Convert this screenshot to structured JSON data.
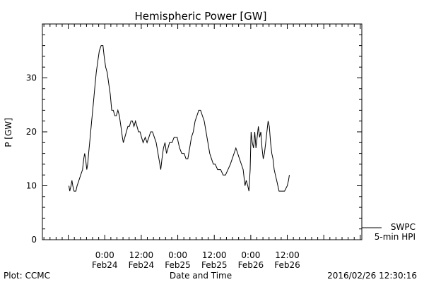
{
  "chart_data": {
    "type": "line",
    "title": "Hemispheric Power [GW]",
    "ylabel": "P [GW]",
    "xlabel": "Date and Time",
    "ylim": [
      0,
      40
    ],
    "xlim_hours": [
      -20.5,
      84.5
    ],
    "yticks": [
      {
        "value": 0,
        "label": "0"
      },
      {
        "value": 10,
        "label": "10"
      },
      {
        "value": 20,
        "label": "20"
      },
      {
        "value": 30,
        "label": "30"
      }
    ],
    "xticks": [
      {
        "hour": 0,
        "time": "0:00",
        "date": "Feb24"
      },
      {
        "hour": 12,
        "time": "12:00",
        "date": "Feb24"
      },
      {
        "hour": 24,
        "time": "0:00",
        "date": "Feb25"
      },
      {
        "hour": 36,
        "time": "12:00",
        "date": "Feb25"
      },
      {
        "hour": 48,
        "time": "0:00",
        "date": "Feb26"
      },
      {
        "hour": 60,
        "time": "12:00",
        "date": "Feb26"
      }
    ],
    "grid": false,
    "legend": {
      "position": "bottom-right",
      "source": "SWPC",
      "label": "5-min HPI"
    },
    "series": [
      {
        "name": "5-min HPI",
        "color": "#000000",
        "points": [
          [
            -11.8,
            10
          ],
          [
            -11.5,
            9
          ],
          [
            -11.1,
            10
          ],
          [
            -10.8,
            11
          ],
          [
            -10.5,
            10
          ],
          [
            -10.1,
            9
          ],
          [
            -9.5,
            9
          ],
          [
            -9.1,
            10
          ],
          [
            -8.5,
            11
          ],
          [
            -7.9,
            12
          ],
          [
            -7.3,
            13
          ],
          [
            -6.9,
            15
          ],
          [
            -6.6,
            16
          ],
          [
            -6.3,
            15
          ],
          [
            -5.9,
            13
          ],
          [
            -5.6,
            14
          ],
          [
            -5.3,
            16
          ],
          [
            -4.8,
            19
          ],
          [
            -4.3,
            22
          ],
          [
            -3.8,
            25
          ],
          [
            -3.3,
            28
          ],
          [
            -2.8,
            31
          ],
          [
            -2.3,
            33
          ],
          [
            -1.8,
            35
          ],
          [
            -1.2,
            36
          ],
          [
            -0.6,
            36
          ],
          [
            -0.2,
            34
          ],
          [
            0.3,
            32
          ],
          [
            0.8,
            31
          ],
          [
            1.3,
            29
          ],
          [
            1.8,
            27
          ],
          [
            2.3,
            24
          ],
          [
            2.8,
            24
          ],
          [
            3.3,
            23
          ],
          [
            3.8,
            23
          ],
          [
            4.3,
            24
          ],
          [
            4.8,
            23
          ],
          [
            5.3,
            21
          ],
          [
            5.8,
            19
          ],
          [
            6.1,
            18
          ],
          [
            6.6,
            19
          ],
          [
            7.1,
            20
          ],
          [
            7.6,
            21
          ],
          [
            8.1,
            21
          ],
          [
            8.6,
            22
          ],
          [
            9.1,
            22
          ],
          [
            9.6,
            21
          ],
          [
            10.1,
            22
          ],
          [
            10.6,
            21
          ],
          [
            11.1,
            20
          ],
          [
            11.6,
            20
          ],
          [
            12.1,
            19
          ],
          [
            12.6,
            18
          ],
          [
            13.3,
            19
          ],
          [
            13.9,
            18
          ],
          [
            14.5,
            19
          ],
          [
            15.1,
            20
          ],
          [
            15.7,
            20
          ],
          [
            16.3,
            19
          ],
          [
            16.9,
            18
          ],
          [
            17.5,
            16
          ],
          [
            18.1,
            14
          ],
          [
            18.4,
            13
          ],
          [
            18.8,
            15
          ],
          [
            19.3,
            17
          ],
          [
            19.8,
            18
          ],
          [
            20.3,
            16
          ],
          [
            20.8,
            17
          ],
          [
            21.3,
            18
          ],
          [
            22.1,
            18
          ],
          [
            22.8,
            19
          ],
          [
            23.8,
            19
          ],
          [
            24.6,
            17
          ],
          [
            25.3,
            16
          ],
          [
            26.1,
            16
          ],
          [
            26.7,
            15
          ],
          [
            27.3,
            15
          ],
          [
            27.9,
            17
          ],
          [
            28.5,
            19
          ],
          [
            29.1,
            20
          ],
          [
            29.7,
            22
          ],
          [
            30.3,
            23
          ],
          [
            30.9,
            24
          ],
          [
            31.5,
            24
          ],
          [
            32.1,
            23
          ],
          [
            32.7,
            22
          ],
          [
            33.3,
            20
          ],
          [
            33.9,
            18
          ],
          [
            34.5,
            16
          ],
          [
            35.1,
            15
          ],
          [
            35.7,
            14
          ],
          [
            36.3,
            14
          ],
          [
            37.1,
            13
          ],
          [
            38.1,
            13
          ],
          [
            38.9,
            12
          ],
          [
            39.7,
            12
          ],
          [
            40.5,
            13
          ],
          [
            41.3,
            14
          ],
          [
            41.9,
            15
          ],
          [
            42.5,
            16
          ],
          [
            43.1,
            17
          ],
          [
            43.7,
            16
          ],
          [
            44.3,
            15
          ],
          [
            44.9,
            14
          ],
          [
            45.5,
            13
          ],
          [
            46.1,
            10
          ],
          [
            46.5,
            11
          ],
          [
            47.0,
            10
          ],
          [
            47.4,
            9
          ],
          [
            47.8,
            13
          ],
          [
            48.1,
            20
          ],
          [
            48.5,
            18
          ],
          [
            48.9,
            17
          ],
          [
            49.3,
            20
          ],
          [
            49.7,
            17
          ],
          [
            50.1,
            19
          ],
          [
            50.5,
            21
          ],
          [
            50.9,
            19
          ],
          [
            51.3,
            20
          ],
          [
            51.7,
            17
          ],
          [
            52.1,
            15
          ],
          [
            52.5,
            16
          ],
          [
            52.9,
            18
          ],
          [
            53.3,
            20
          ],
          [
            53.7,
            22
          ],
          [
            54.1,
            21
          ],
          [
            54.5,
            18
          ],
          [
            54.9,
            16
          ],
          [
            55.3,
            15
          ],
          [
            55.7,
            13
          ],
          [
            56.1,
            12
          ],
          [
            56.5,
            11
          ],
          [
            56.9,
            10
          ],
          [
            57.3,
            9
          ],
          [
            58.1,
            9
          ],
          [
            59.1,
            9
          ],
          [
            60.0,
            10
          ],
          [
            60.4,
            11
          ],
          [
            60.7,
            12
          ]
        ]
      }
    ]
  },
  "footer": {
    "plot_credit": "Plot: CCMC",
    "timestamp": "2016/02/26 12:30:16"
  }
}
